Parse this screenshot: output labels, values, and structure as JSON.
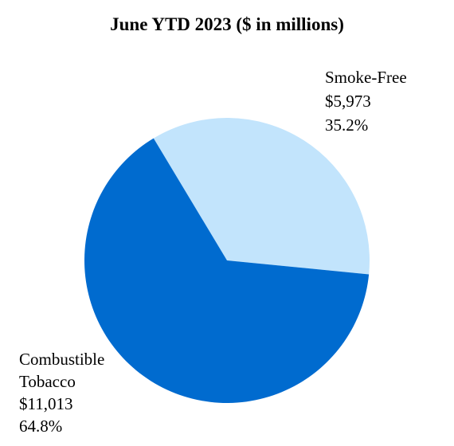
{
  "chart_data": {
    "type": "pie",
    "title": "June YTD 2023 ($ in millions)",
    "slices": [
      {
        "name": "Smoke-Free",
        "value": 5973,
        "value_label": "$5,973",
        "percent": 35.2,
        "percent_label": "35.2%",
        "color": "#C2E4FC"
      },
      {
        "name": "Combustible Tobacco",
        "name_lines": [
          "Combustible",
          "Tobacco"
        ],
        "value": 11013,
        "value_label": "$11,013",
        "percent": 64.8,
        "percent_label": "64.8%",
        "color": "#006BCF"
      }
    ],
    "legend": "none"
  }
}
